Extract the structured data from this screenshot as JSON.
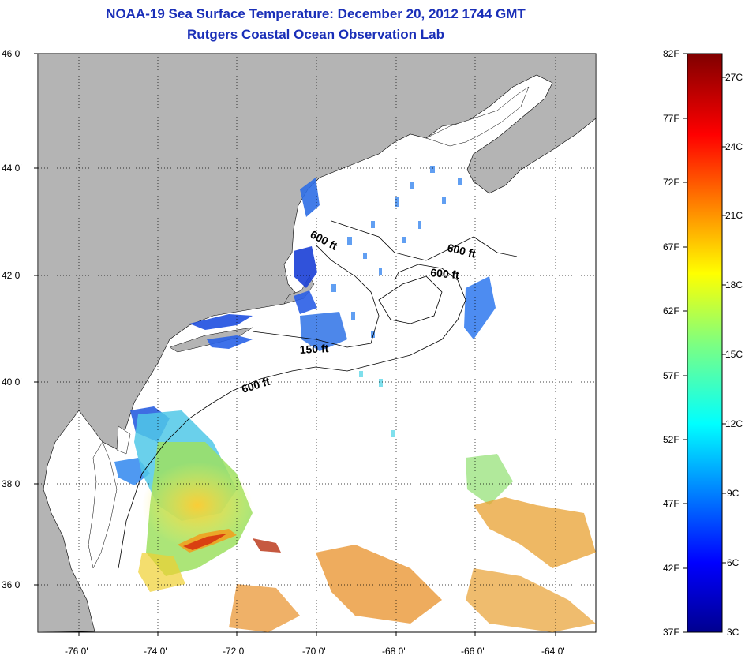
{
  "title": "NOAA-19 Sea Surface Temperature:  December 20, 2012 1744 GMT",
  "subtitle": "Rutgers Coastal Ocean Observation Lab",
  "lat_labels": [
    "46 0'",
    "44 0'",
    "42 0'",
    "40 0'",
    "38 0'",
    "36 0'"
  ],
  "lon_labels": [
    "-76 0'",
    "-74 0'",
    "-72 0'",
    "-70 0'",
    "-68 0'",
    "-66 0'",
    "-64 0'"
  ],
  "isobath_labels": [
    "600 ft",
    "600 ft",
    "600 ft",
    "150 ft",
    "600 ft"
  ],
  "colorbar": {
    "f_labels": [
      "82F",
      "77F",
      "72F",
      "67F",
      "62F",
      "57F",
      "52F",
      "47F",
      "42F",
      "37F"
    ],
    "c_labels": [
      "27C",
      "24C",
      "21C",
      "18C",
      "15C",
      "12C",
      "9C",
      "6C",
      "3C"
    ]
  },
  "colors": {
    "title": "#1a2fb8",
    "land": "#b4b4b4",
    "ocean": "#ffffff"
  }
}
